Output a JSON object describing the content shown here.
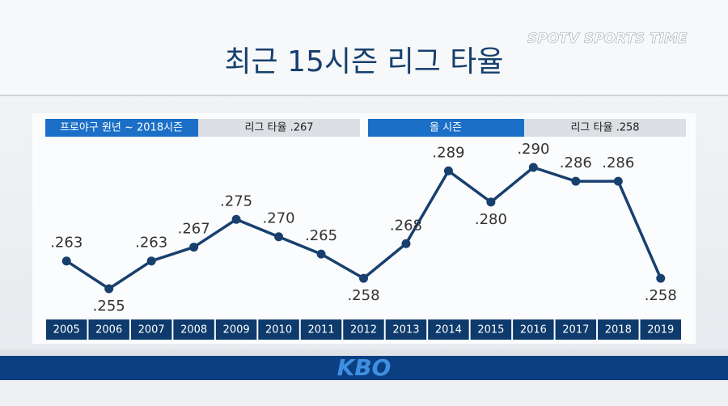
{
  "chart_data": {
    "type": "line",
    "title": "최근 15시즌 리그 타율",
    "logo": "SPOTV SPORTS TIME",
    "footer_logo": "KBO",
    "annotations": [
      "프로야구 원년 ~ 2018시즌",
      "리그 타율 .267",
      "올 시즌",
      "리그 타율 .258"
    ],
    "categories": [
      "2005",
      "2006",
      "2007",
      "2008",
      "2009",
      "2010",
      "2011",
      "2012",
      "2013",
      "2014",
      "2015",
      "2016",
      "2017",
      "2018",
      "2019"
    ],
    "values": [
      0.263,
      0.255,
      0.263,
      0.267,
      0.275,
      0.27,
      0.265,
      0.258,
      0.268,
      0.289,
      0.28,
      0.29,
      0.286,
      0.286,
      0.258
    ],
    "value_labels": [
      ".263",
      ".255",
      ".263",
      ".267",
      ".275",
      ".270",
      ".265",
      ".258",
      ".268",
      ".289",
      ".280",
      ".290",
      ".286",
      ".286",
      ".258"
    ],
    "color": "#17406f"
  }
}
